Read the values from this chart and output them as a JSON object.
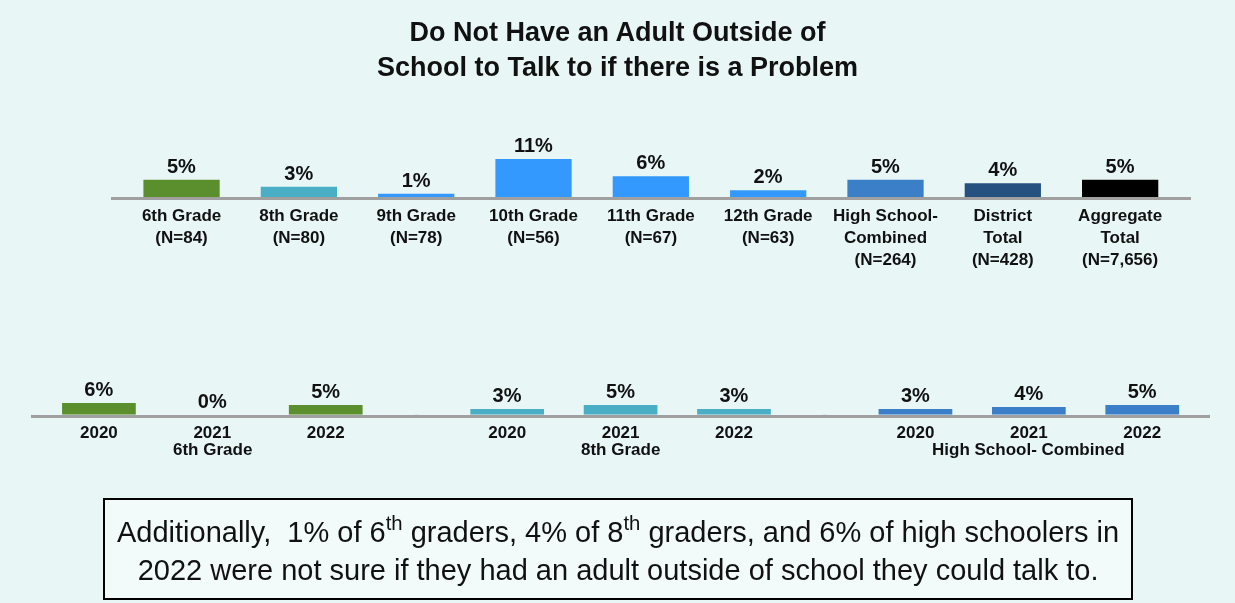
{
  "chart_data": [
    {
      "type": "bar",
      "title": "Do Not Have an Adult Outside of\nSchool to Talk to if there is a Problem",
      "categories": [
        "6th Grade\n(N=84)",
        "8th Grade\n(N=80)",
        "9th Grade\n(N=78)",
        "10th Grade\n(N=56)",
        "11th Grade\n(N=67)",
        "12th Grade\n(N=63)",
        "High School-\nCombined\n(N=264)",
        "District\nTotal\n(N=428)",
        "Aggregate\nTotal\n(N=7,656)"
      ],
      "values": [
        5,
        3,
        1,
        11,
        6,
        2,
        5,
        4,
        5
      ],
      "colors": [
        "#5b8f2e",
        "#4aafc4",
        "#3399ff",
        "#3399ff",
        "#3399ff",
        "#3399ff",
        "#3b7fc9",
        "#24517f",
        "#000000"
      ],
      "value_labels": [
        "5%",
        "3%",
        "1%",
        "11%",
        "6%",
        "2%",
        "5%",
        "4%",
        "5%"
      ],
      "grid": false,
      "tick_labels": "x"
    },
    {
      "type": "bar",
      "categories": [
        "2020",
        "2021",
        "2022",
        "2020",
        "2021",
        "2022",
        "2020",
        "2021",
        "2022"
      ],
      "values": [
        6,
        0,
        5,
        3,
        5,
        3,
        3,
        4,
        5
      ],
      "colors": [
        "#5b8f2e",
        "#5b8f2e",
        "#5b8f2e",
        "#4aafc4",
        "#4aafc4",
        "#4aafc4",
        "#3b7fc9",
        "#3b7fc9",
        "#3b7fc9"
      ],
      "annotations": [
        "6th Grade",
        "8th Grade",
        "High School- Combined"
      ],
      "value_labels": [
        "6%",
        "0%",
        "5%",
        "3%",
        "5%",
        "3%",
        "3%",
        "4%",
        "5%"
      ],
      "grid": false,
      "tick_labels": "x"
    },
    {
      "type": "other",
      "annotations": [
        "Additionally,  1% of 6$^{th}$ graders, 4% of 8$^{th}$ graders, and 6% of high schoolers in\n2022 were not sure if they had an adult outside of school they could talk to."
      ]
    }
  ]
}
